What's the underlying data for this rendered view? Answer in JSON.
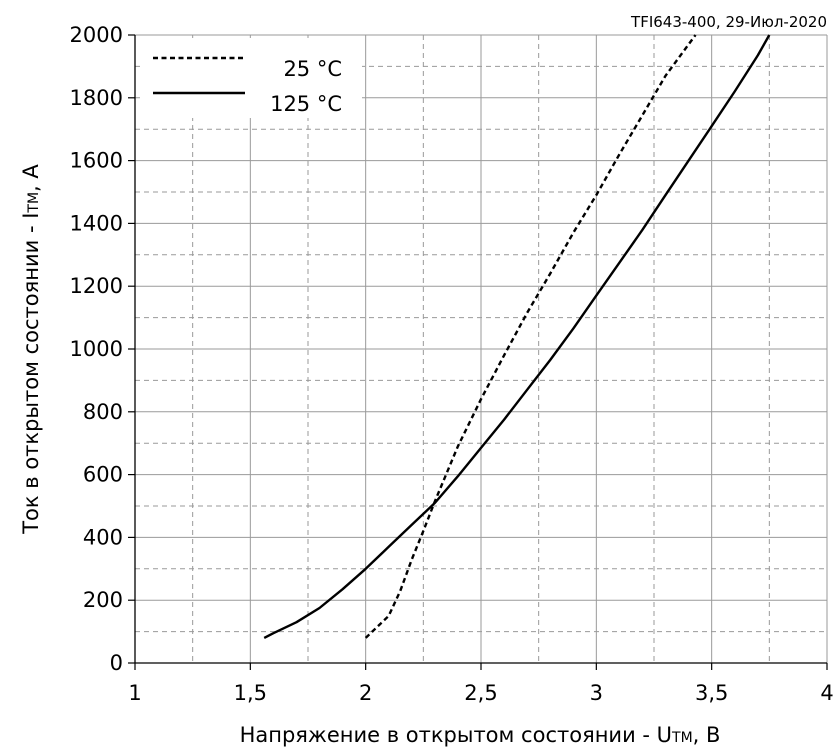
{
  "chart_data": {
    "type": "line",
    "annotation": "TFI643-400, 29-Июл-2020",
    "xlabel": {
      "prefix": "Напряжение в открытом состоянии - U",
      "sub": "TM",
      "suffix": ", В"
    },
    "ylabel": {
      "prefix": "Ток в открытом состоянии - I",
      "sub": "TM",
      "suffix": ", А"
    },
    "xlim": [
      1,
      4
    ],
    "ylim": [
      0,
      2000
    ],
    "xticks": [
      1,
      1.5,
      2,
      2.5,
      3,
      3.5,
      4
    ],
    "xtick_labels": [
      "1",
      "1,5",
      "2",
      "2,5",
      "3",
      "3,5",
      "4"
    ],
    "yticks": [
      0,
      200,
      400,
      600,
      800,
      1000,
      1200,
      1400,
      1600,
      1800,
      2000
    ],
    "ytick_labels": [
      "0",
      "200",
      "400",
      "600",
      "800",
      "1000",
      "1200",
      "1400",
      "1600",
      "1800",
      "2000"
    ],
    "grid": {
      "major": true,
      "minor": true,
      "minor_x_step": 0.25,
      "minor_y_step": 100
    },
    "legend": "top-left",
    "series": [
      {
        "name": "25 °C",
        "style": "dotted",
        "color": "#000000",
        "x": [
          2.0,
          2.1,
          2.15,
          2.2,
          2.25,
          2.3,
          2.4,
          2.5,
          2.6,
          2.7,
          2.8,
          2.9,
          3.0,
          3.1,
          3.2,
          3.3,
          3.43
        ],
        "y": [
          80,
          150,
          230,
          330,
          420,
          515,
          690,
          840,
          980,
          1115,
          1240,
          1370,
          1490,
          1620,
          1745,
          1870,
          2000
        ]
      },
      {
        "name": "125 °C",
        "style": "solid",
        "color": "#000000",
        "x": [
          1.56,
          1.6,
          1.7,
          1.8,
          1.9,
          2.0,
          2.1,
          2.2,
          2.3,
          2.4,
          2.5,
          2.6,
          2.7,
          2.8,
          2.9,
          3.0,
          3.1,
          3.2,
          3.3,
          3.4,
          3.5,
          3.6,
          3.7,
          3.75
        ],
        "y": [
          80,
          95,
          130,
          175,
          235,
          300,
          370,
          440,
          510,
          595,
          685,
          775,
          870,
          965,
          1065,
          1170,
          1275,
          1380,
          1490,
          1600,
          1710,
          1820,
          1935,
          2000
        ]
      }
    ]
  }
}
